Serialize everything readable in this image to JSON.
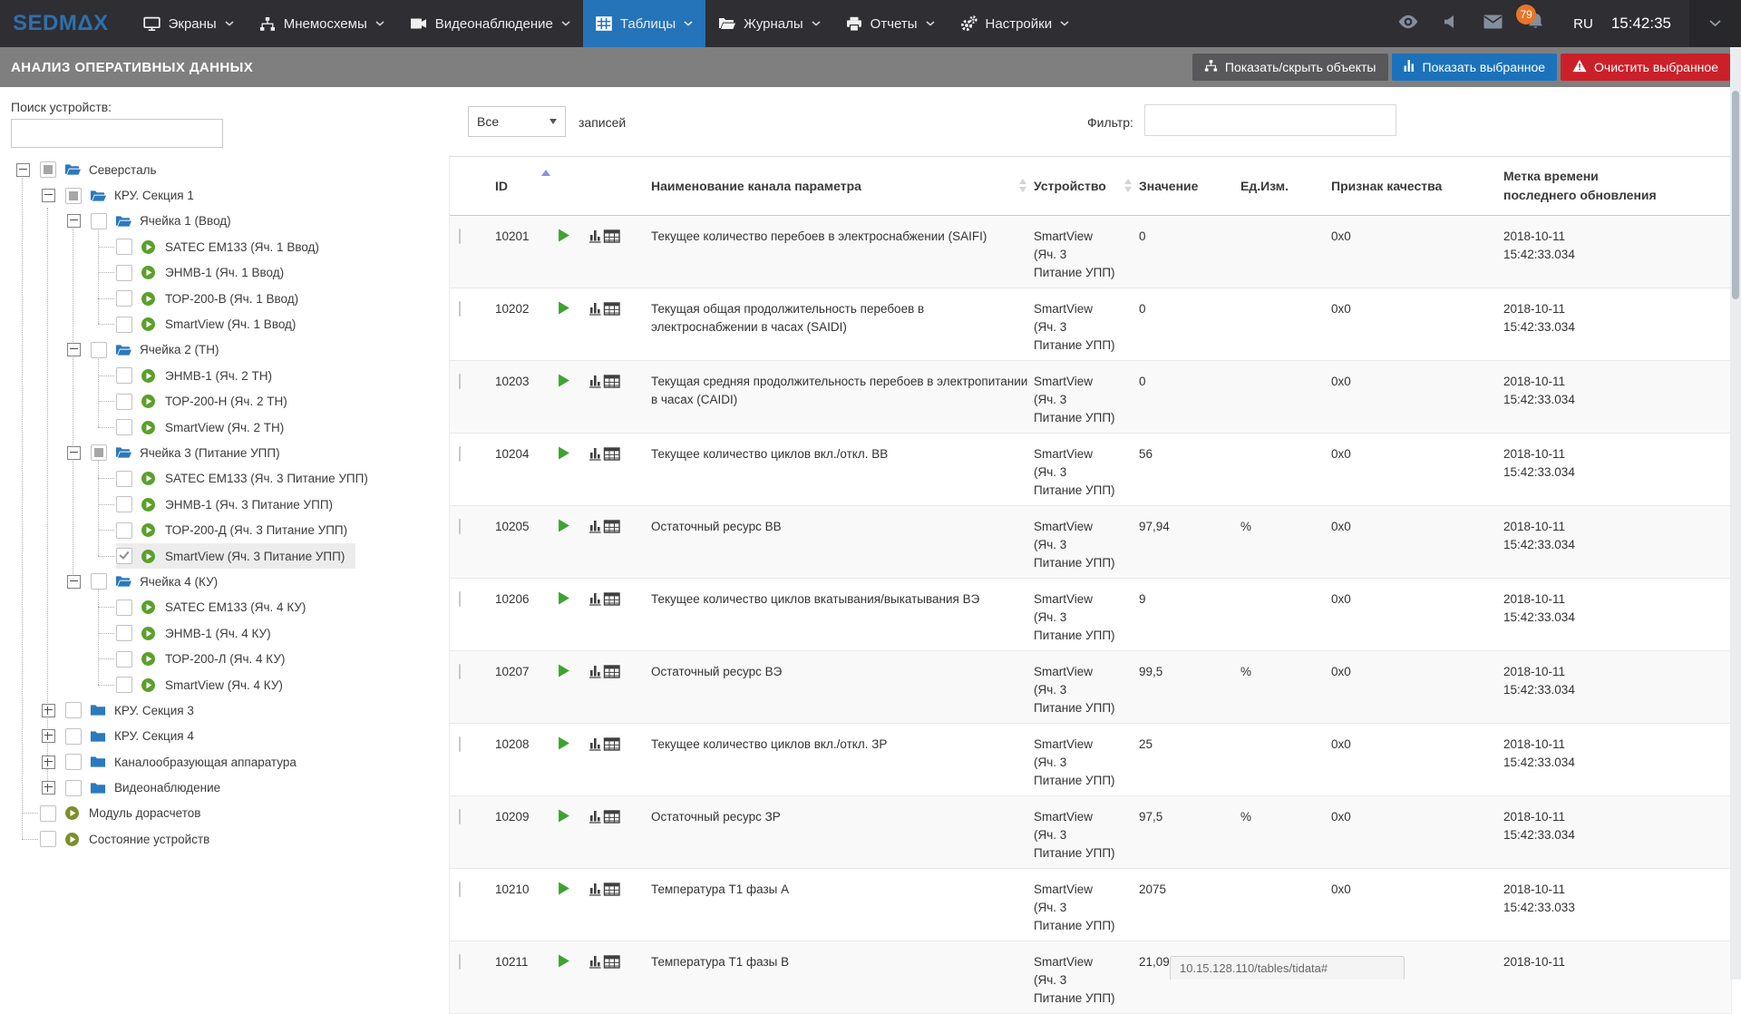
{
  "topnav": {
    "logo": "SEDMΔX",
    "items": [
      {
        "label": "Экраны",
        "icon": "screens-icon",
        "active": false
      },
      {
        "label": "Мнемосхемы",
        "icon": "mimic-icon",
        "active": false
      },
      {
        "label": "Видеонаблюдение",
        "icon": "video-icon",
        "active": false
      },
      {
        "label": "Таблицы",
        "icon": "tables-icon",
        "active": true
      },
      {
        "label": "Журналы",
        "icon": "journals-icon",
        "active": false
      },
      {
        "label": "Отчеты",
        "icon": "reports-icon",
        "active": false
      },
      {
        "label": "Настройки",
        "icon": "settings-icon",
        "active": false
      }
    ],
    "badge_count": "79",
    "language": "RU",
    "clock": "15:42:35"
  },
  "header": {
    "title": "АНАЛИЗ ОПЕРАТИВНЫХ ДАННЫХ",
    "buttons": [
      {
        "label": "Показать/скрыть объекты",
        "style": "gray"
      },
      {
        "label": "Показать выбранное",
        "style": "blue"
      },
      {
        "label": "Очистить выбранное",
        "style": "red"
      }
    ]
  },
  "sidebar": {
    "search_label": "Поиск устройств:",
    "search_value": "",
    "tree": [
      {
        "label": "Северсталь",
        "level": 0,
        "icon": "folder-open",
        "exp": "minus",
        "check": "ind"
      },
      {
        "label": "КРУ. Секция 1",
        "level": 1,
        "icon": "folder-open",
        "exp": "minus",
        "check": "ind"
      },
      {
        "label": "Ячейка 1 (Ввод)",
        "level": 2,
        "icon": "folder-open",
        "exp": "minus",
        "check": "none"
      },
      {
        "label": "SATEC EM133 (Яч. 1 Ввод)",
        "level": 3,
        "icon": "device",
        "check": "none"
      },
      {
        "label": "ЭНМВ-1 (Яч. 1 Ввод)",
        "level": 3,
        "icon": "device",
        "check": "none"
      },
      {
        "label": "ТОР-200-В (Яч. 1 Ввод)",
        "level": 3,
        "icon": "device",
        "check": "none"
      },
      {
        "label": "SmartView (Яч. 1 Ввод)",
        "level": 3,
        "icon": "device",
        "check": "none"
      },
      {
        "label": "Ячейка 2 (ТН)",
        "level": 2,
        "icon": "folder-open",
        "exp": "minus",
        "check": "none"
      },
      {
        "label": "ЭНМВ-1 (Яч. 2 ТН)",
        "level": 3,
        "icon": "device",
        "check": "none"
      },
      {
        "label": "ТОР-200-Н (Яч. 2 ТН)",
        "level": 3,
        "icon": "device",
        "check": "none"
      },
      {
        "label": "SmartView (Яч. 2 ТН)",
        "level": 3,
        "icon": "device",
        "check": "none"
      },
      {
        "label": "Ячейка 3 (Питание УПП)",
        "level": 2,
        "icon": "folder-open",
        "exp": "minus",
        "check": "ind"
      },
      {
        "label": "SATEC EM133 (Яч. 3 Питание УПП)",
        "level": 3,
        "icon": "device",
        "check": "none"
      },
      {
        "label": "ЭНМВ-1 (Яч. 3 Питание УПП)",
        "level": 3,
        "icon": "device",
        "check": "none"
      },
      {
        "label": "ТОР-200-Д (Яч. 3 Питание УПП)",
        "level": 3,
        "icon": "device",
        "check": "none"
      },
      {
        "label": "SmartView (Яч. 3 Питание УПП)",
        "level": 3,
        "icon": "device",
        "check": "checked",
        "sel": true
      },
      {
        "label": "Ячейка 4 (КУ)",
        "level": 2,
        "icon": "folder-open",
        "exp": "minus",
        "check": "none"
      },
      {
        "label": "SATEC EM133 (Яч. 4 КУ)",
        "level": 3,
        "icon": "device",
        "check": "none"
      },
      {
        "label": "ЭНМВ-1 (Яч. 4 КУ)",
        "level": 3,
        "icon": "device",
        "check": "none"
      },
      {
        "label": "ТОР-200-Л (Яч. 4 КУ)",
        "level": 3,
        "icon": "device",
        "check": "none"
      },
      {
        "label": "SmartView (Яч. 4 КУ)",
        "level": 3,
        "icon": "device",
        "check": "none"
      },
      {
        "label": "КРУ. Секция 3",
        "level": 1,
        "icon": "folder-closed",
        "exp": "plus",
        "check": "none"
      },
      {
        "label": "КРУ. Секция 4",
        "level": 1,
        "icon": "folder-closed",
        "exp": "plus",
        "check": "none"
      },
      {
        "label": "Каналообразующая аппаратура",
        "level": 1,
        "icon": "folder-closed",
        "exp": "plus",
        "check": "none"
      },
      {
        "label": "Видеонаблюдение",
        "level": 1,
        "icon": "folder-closed",
        "exp": "plus",
        "check": "none"
      },
      {
        "label": "Модуль дорасчетов",
        "level": 0,
        "icon": "device-alt",
        "check": "none"
      },
      {
        "label": "Состояние устройств",
        "level": 0,
        "icon": "device-alt",
        "check": "none"
      }
    ]
  },
  "toolbar": {
    "page_size_value": "Все",
    "records_label": "записей",
    "filter_label": "Фильтр:",
    "filter_value": ""
  },
  "table": {
    "headers": {
      "id": "ID",
      "name": "Наименование канала параметра",
      "device": "Устройство",
      "value": "Значение",
      "unit": "Ед.Изм.",
      "quality": "Признак качества",
      "time1": "Метка времени",
      "time2": "последнего обновления"
    },
    "rows": [
      {
        "id": "10201",
        "name": "Текущее количество перебоев в электроснабжении (SAIFI)",
        "device": [
          "SmartView",
          "(Яч. 3",
          "Питание УПП)"
        ],
        "value": "0",
        "unit": "",
        "quality": "0x0",
        "time": [
          "2018-10-11",
          "15:42:33.034"
        ]
      },
      {
        "id": "10202",
        "name": "Текущая общая продолжительность перебоев в электроснабжении в часах (SAIDI)",
        "device": [
          "SmartView",
          "(Яч. 3",
          "Питание УПП)"
        ],
        "value": "0",
        "unit": "",
        "quality": "0x0",
        "time": [
          "2018-10-11",
          "15:42:33.034"
        ]
      },
      {
        "id": "10203",
        "name": "Текущая средняя продолжительность перебоев в электропитании в часах (CAIDI)",
        "device": [
          "SmartView",
          "(Яч. 3",
          "Питание УПП)"
        ],
        "value": "0",
        "unit": "",
        "quality": "0x0",
        "time": [
          "2018-10-11",
          "15:42:33.034"
        ]
      },
      {
        "id": "10204",
        "name": "Текущее количество циклов вкл./откл. ВВ",
        "device": [
          "SmartView",
          "(Яч. 3",
          "Питание УПП)"
        ],
        "value": "56",
        "unit": "",
        "quality": "0x0",
        "time": [
          "2018-10-11",
          "15:42:33.034"
        ]
      },
      {
        "id": "10205",
        "name": "Остаточный ресурс ВВ",
        "device": [
          "SmartView",
          "(Яч. 3",
          "Питание УПП)"
        ],
        "value": "97,94",
        "unit": "%",
        "quality": "0x0",
        "time": [
          "2018-10-11",
          "15:42:33.034"
        ]
      },
      {
        "id": "10206",
        "name": "Текущее количество циклов вкатывания/выкатывания ВЭ",
        "device": [
          "SmartView",
          "(Яч. 3",
          "Питание УПП)"
        ],
        "value": "9",
        "unit": "",
        "quality": "0x0",
        "time": [
          "2018-10-11",
          "15:42:33.034"
        ]
      },
      {
        "id": "10207",
        "name": "Остаточный ресурс ВЭ",
        "device": [
          "SmartView",
          "(Яч. 3",
          "Питание УПП)"
        ],
        "value": "99,5",
        "unit": "%",
        "quality": "0x0",
        "time": [
          "2018-10-11",
          "15:42:33.034"
        ]
      },
      {
        "id": "10208",
        "name": "Текущее количество циклов вкл./откл. ЗР",
        "device": [
          "SmartView",
          "(Яч. 3",
          "Питание УПП)"
        ],
        "value": "25",
        "unit": "",
        "quality": "0x0",
        "time": [
          "2018-10-11",
          "15:42:33.034"
        ]
      },
      {
        "id": "10209",
        "name": "Остаточный ресурс ЗР",
        "device": [
          "SmartView",
          "(Яч. 3",
          "Питание УПП)"
        ],
        "value": "97,5",
        "unit": "%",
        "quality": "0x0",
        "time": [
          "2018-10-11",
          "15:42:33.034"
        ]
      },
      {
        "id": "10210",
        "name": "Температура Т1 фазы А",
        "device": [
          "SmartView",
          "(Яч. 3",
          "Питание УПП)"
        ],
        "value": "2075",
        "unit": "",
        "quality": "0x0",
        "time": [
          "2018-10-11",
          "15:42:33.033"
        ]
      },
      {
        "id": "10211",
        "name": "Температура Т1 фазы В",
        "device": [
          "SmartView",
          "(Яч. 3",
          "Питание УПП)"
        ],
        "value": "21,09",
        "unit": "",
        "quality": "0x0",
        "time": [
          "2018-10-11",
          ""
        ]
      }
    ]
  },
  "statusbar": {
    "url": "10.15.128.110/tables/tidata#"
  },
  "colors": {
    "nav_bg": "#2e2e33",
    "nav_active": "#2573b8",
    "logo_blue": "#2f70ab",
    "header_bg": "#7f7f7f",
    "button_gray": "#58585a",
    "button_blue": "#1b72bb",
    "button_red": "#cb2029",
    "badge_orange": "#e8752a",
    "folder_blue": "#2b79be",
    "device_green": "#5ba02a",
    "device_olive": "#7d8f2b",
    "row_play_green": "#3da32f",
    "sort_active": "#8f8fdd",
    "stripe": "#f9f9f9",
    "selected_row": "#ececec"
  }
}
